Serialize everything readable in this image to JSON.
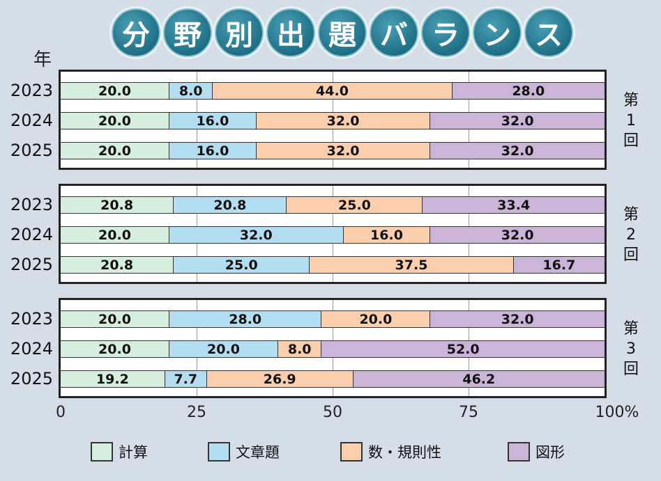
{
  "title_chars": [
    "分",
    "野",
    "別",
    "出",
    "題",
    "バ",
    "ラ",
    "ン",
    "ス"
  ],
  "year_axis_label": "年",
  "colors": {
    "keisan": "#d6eedd",
    "bunshodai": "#b3def2",
    "kazu": "#fbcfae",
    "zukei": "#cab5d9"
  },
  "chart_data": {
    "type": "bar",
    "orientation": "horizontal",
    "stacked": true,
    "title": "分野別出題バランス",
    "xlim": [
      0,
      100
    ],
    "x_ticks": [
      "0",
      "25",
      "50",
      "75",
      "100%"
    ],
    "y_label": "年",
    "legend_placement": "bottom",
    "categories": [
      "計算",
      "文章題",
      "数・規則性",
      "図形"
    ],
    "groups": [
      {
        "label": "第1回",
        "rows": [
          {
            "year": "2023",
            "values": [
              20.0,
              8.0,
              44.0,
              28.0
            ],
            "labels": [
              "20.0",
              "8.0",
              "44.0",
              "28.0"
            ]
          },
          {
            "year": "2024",
            "values": [
              20.0,
              16.0,
              32.0,
              32.0
            ],
            "labels": [
              "20.0",
              "16.0",
              "32.0",
              "32.0"
            ]
          },
          {
            "year": "2025",
            "values": [
              20.0,
              16.0,
              32.0,
              32.0
            ],
            "labels": [
              "20.0",
              "16.0",
              "32.0",
              "32.0"
            ]
          }
        ]
      },
      {
        "label": "第2回",
        "rows": [
          {
            "year": "2023",
            "values": [
              20.8,
              20.8,
              25.0,
              33.4
            ],
            "labels": [
              "20.8",
              "20.8",
              "25.0",
              "33.4"
            ]
          },
          {
            "year": "2024",
            "values": [
              20.0,
              32.0,
              16.0,
              32.0
            ],
            "labels": [
              "20.0",
              "32.0",
              "16.0",
              "32.0"
            ]
          },
          {
            "year": "2025",
            "values": [
              20.8,
              25.0,
              37.5,
              16.7
            ],
            "labels": [
              "20.8",
              "25.0",
              "37.5",
              "16.7"
            ]
          }
        ]
      },
      {
        "label": "第3回",
        "rows": [
          {
            "year": "2023",
            "values": [
              20.0,
              28.0,
              20.0,
              32.0
            ],
            "labels": [
              "20.0",
              "28.0",
              "20.0",
              "32.0"
            ]
          },
          {
            "year": "2024",
            "values": [
              20.0,
              20.0,
              8.0,
              52.0
            ],
            "labels": [
              "20.0",
              "20.0",
              "8.0",
              "52.0"
            ]
          },
          {
            "year": "2025",
            "values": [
              19.2,
              7.7,
              26.9,
              46.2
            ],
            "labels": [
              "19.2",
              "7.7",
              "26.9",
              "46.2"
            ]
          }
        ]
      }
    ]
  }
}
